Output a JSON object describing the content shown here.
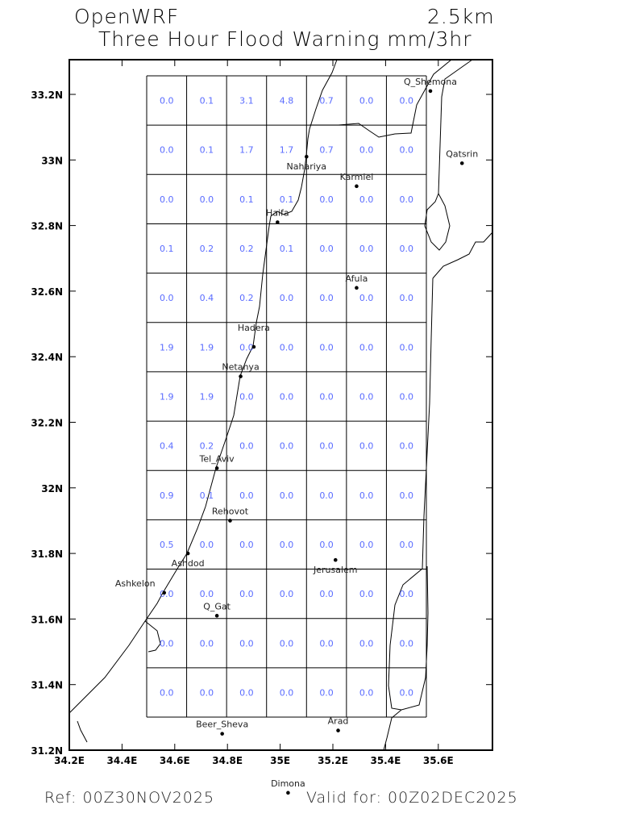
{
  "header": {
    "model": "OpenWRF",
    "resolution": "2.5km",
    "title": "Three Hour Flood Warning mm/3hr"
  },
  "footer": {
    "ref": "Ref: 00Z30NOV2025",
    "valid": "Valid for: 00Z02DEC2025"
  },
  "colors": {
    "values": "#5a6cff",
    "lines": "#000000"
  },
  "map": {
    "lon_range": [
      34.2,
      35.8
    ],
    "lat_range": [
      31.2,
      33.3
    ],
    "lon_labels": [
      "34.2E",
      "34.4E",
      "34.6E",
      "34.8E",
      "35E",
      "35.2E",
      "35.4E",
      "35.6E"
    ],
    "lat_labels": [
      "33.2N",
      "33N",
      "32.8N",
      "32.6N",
      "32.4N",
      "32.2N",
      "32N",
      "31.8N",
      "31.6N",
      "31.4N",
      "31.2N"
    ],
    "grid_values": [
      [
        "0.0",
        "0.1",
        "3.1",
        "4.8",
        "0.7",
        "0.0",
        "0.0"
      ],
      [
        "0.0",
        "0.1",
        "1.7",
        "1.7",
        "0.7",
        "0.0",
        "0.0"
      ],
      [
        "0.0",
        "0.0",
        "0.1",
        "0.1",
        "0.0",
        "0.0",
        "0.0"
      ],
      [
        "0.1",
        "0.2",
        "0.2",
        "0.1",
        "0.0",
        "0.0",
        "0.0"
      ],
      [
        "0.0",
        "0.4",
        "0.2",
        "0.0",
        "0.0",
        "0.0",
        "0.0"
      ],
      [
        "1.9",
        "1.9",
        "0.0",
        "0.0",
        "0.0",
        "0.0",
        "0.0"
      ],
      [
        "1.9",
        "1.9",
        "0.0",
        "0.0",
        "0.0",
        "0.0",
        "0.0"
      ],
      [
        "0.4",
        "0.2",
        "0.0",
        "0.0",
        "0.0",
        "0.0",
        "0.0"
      ],
      [
        "0.9",
        "0.1",
        "0.0",
        "0.0",
        "0.0",
        "0.0",
        "0.0"
      ],
      [
        "0.5",
        "0.0",
        "0.0",
        "0.0",
        "0.0",
        "0.0",
        "0.0"
      ],
      [
        "0.0",
        "0.0",
        "0.0",
        "0.0",
        "0.0",
        "0.0",
        "0.0"
      ],
      [
        "0.0",
        "0.0",
        "0.0",
        "0.0",
        "0.0",
        "0.0",
        "0.0"
      ],
      [
        "0.0",
        "0.0",
        "0.0",
        "0.0",
        "0.0",
        "0.0",
        "0.0"
      ]
    ],
    "cities": [
      {
        "name": "Q_Shemona",
        "lon": 35.57,
        "lat": 33.21
      },
      {
        "name": "Qatsrin",
        "lon": 35.69,
        "lat": 32.99
      },
      {
        "name": "Nahariya",
        "lon": 35.1,
        "lat": 33.01
      },
      {
        "name": "Karmiel",
        "lon": 35.29,
        "lat": 32.92
      },
      {
        "name": "Haifa",
        "lon": 34.99,
        "lat": 32.81
      },
      {
        "name": "Afula",
        "lon": 35.29,
        "lat": 32.61
      },
      {
        "name": "Hadera",
        "lon": 34.9,
        "lat": 32.43
      },
      {
        "name": "Netanya",
        "lon": 34.85,
        "lat": 32.34
      },
      {
        "name": "Tel_Aviv",
        "lon": 34.76,
        "lat": 32.06
      },
      {
        "name": "Rehovot",
        "lon": 34.81,
        "lat": 31.9
      },
      {
        "name": "Ashdod",
        "lon": 34.65,
        "lat": 31.8
      },
      {
        "name": "Jerusalem",
        "lon": 35.21,
        "lat": 31.78
      },
      {
        "name": "Ashkelon",
        "lon": 34.56,
        "lat": 31.68
      },
      {
        "name": "Q_Gat",
        "lon": 34.76,
        "lat": 31.61
      },
      {
        "name": "Beer_Sheva",
        "lon": 34.78,
        "lat": 31.25
      },
      {
        "name": "Arad",
        "lon": 35.22,
        "lat": 31.26
      },
      {
        "name": "Dimona",
        "lon": 35.03,
        "lat": 31.07
      }
    ]
  }
}
